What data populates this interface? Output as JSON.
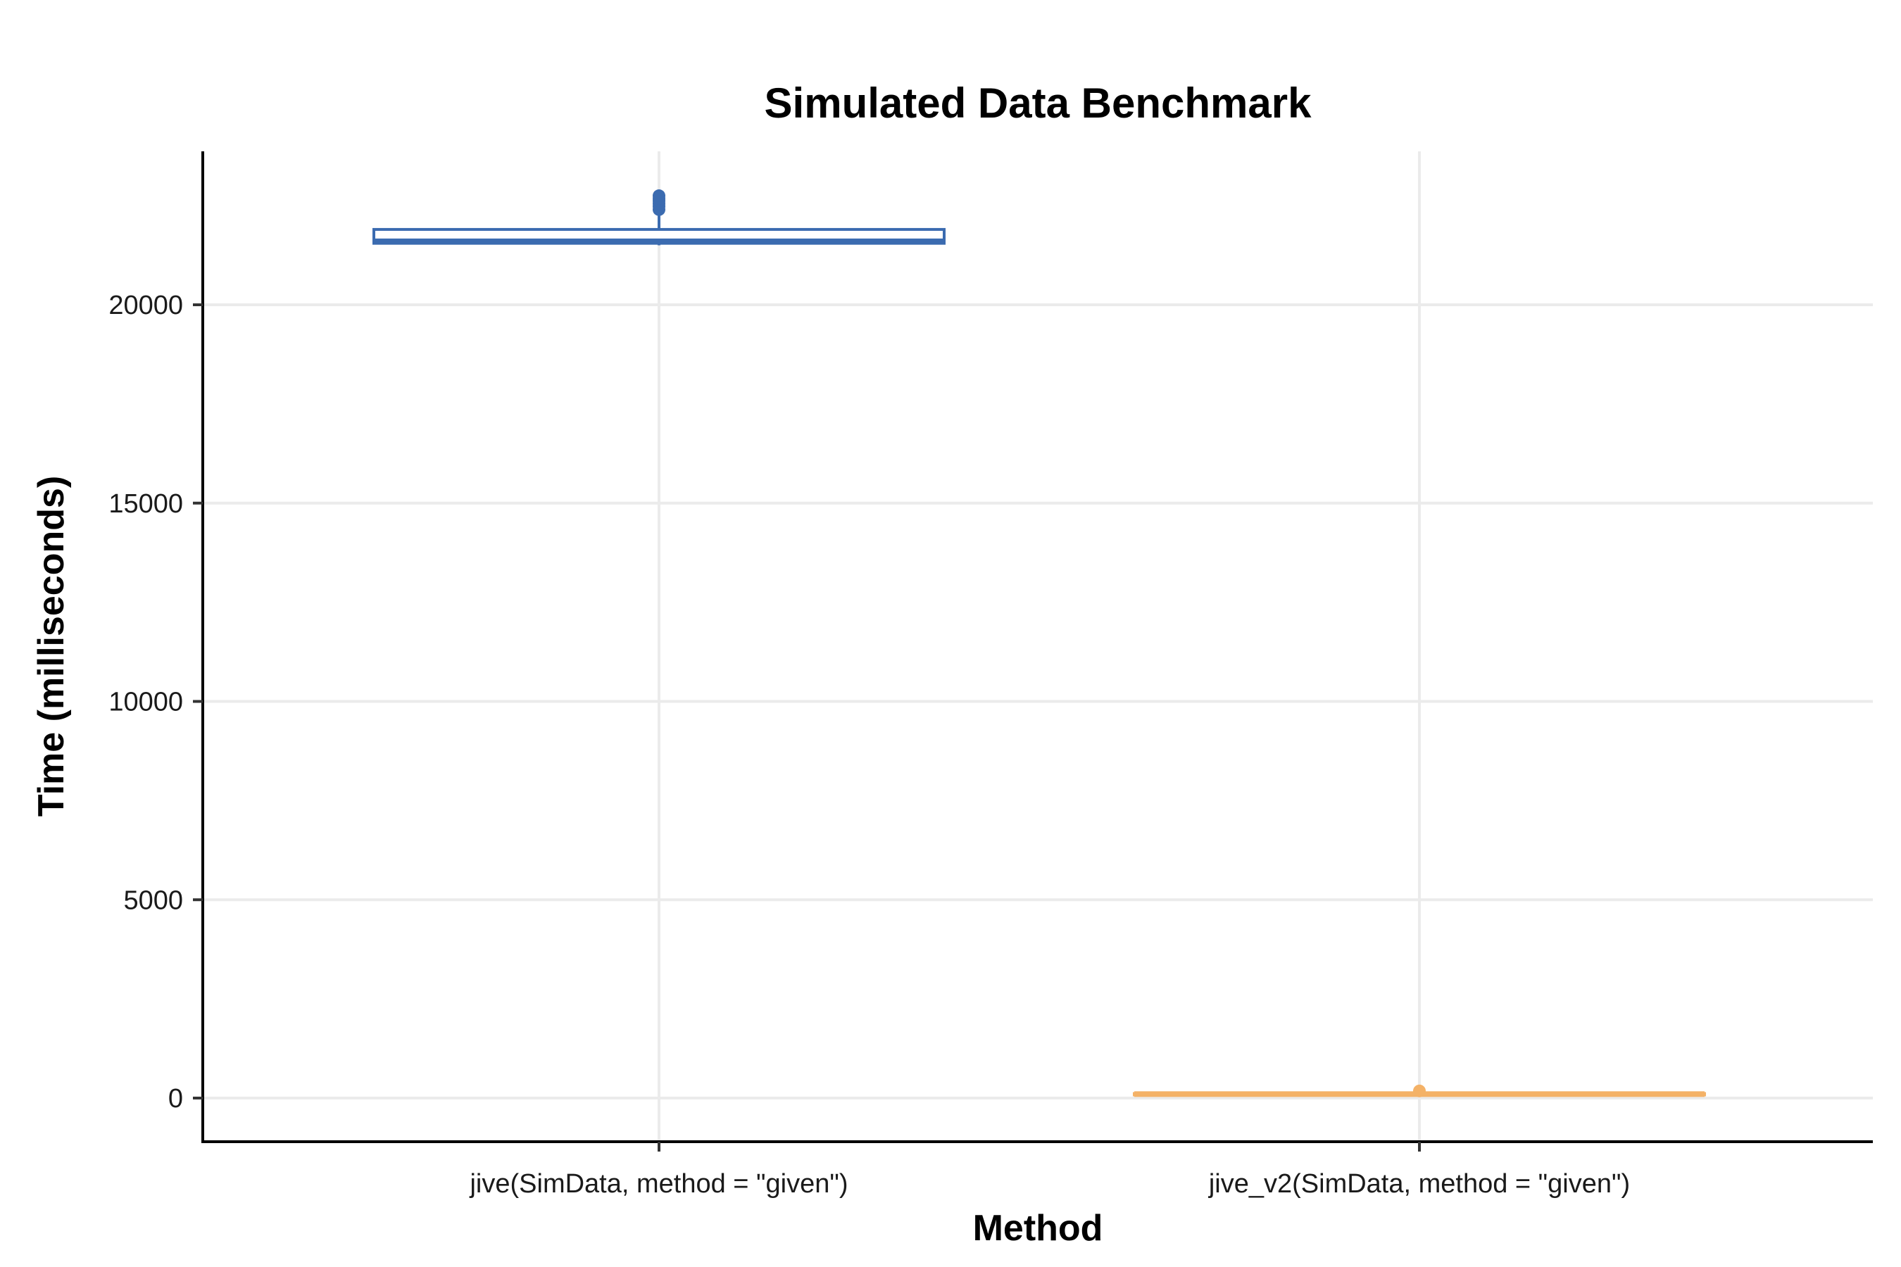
{
  "chart_data": {
    "type": "box",
    "title": "Simulated Data Benchmark",
    "xlabel": "Method",
    "ylabel": "Time (milliseconds)",
    "categories": [
      "jive(SimData, method = \"given\")",
      "jive_v2(SimData, method = \"given\")"
    ],
    "ylim": [
      -1000,
      24000
    ],
    "yticks": [
      0,
      5000,
      10000,
      15000,
      20000
    ],
    "grid": true,
    "legend": "none",
    "series": [
      {
        "category": "jive(SimData, method = \"given\")",
        "color": "#3b6bb0",
        "min": 21500,
        "q1": 21550,
        "median": 21600,
        "q3": 21900,
        "max": 22350,
        "outliers": [
          22400,
          22480,
          22550,
          22620,
          22680,
          22750
        ]
      },
      {
        "category": "jive_v2(SimData, method = \"given\")",
        "color": "#f4b267",
        "min": 70,
        "q1": 85,
        "median": 100,
        "q3": 115,
        "max": 135,
        "outliers": [
          180
        ]
      }
    ]
  }
}
